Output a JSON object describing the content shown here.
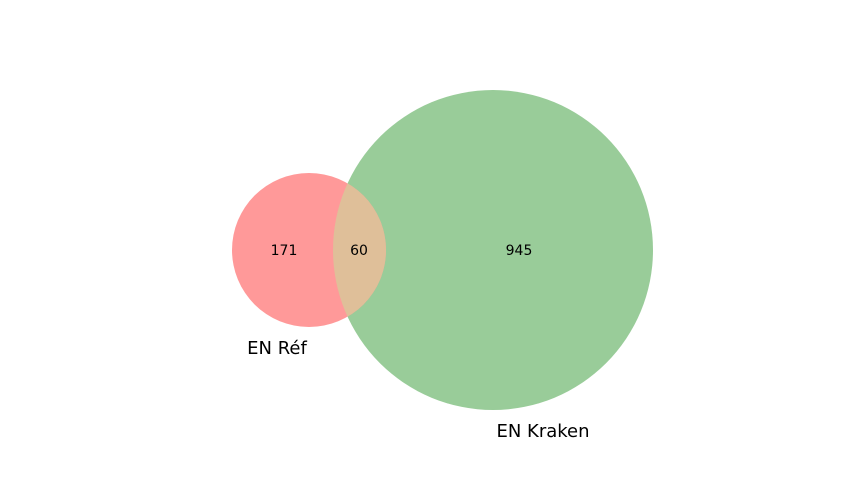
{
  "venn": {
    "sets": [
      {
        "name": "EN Réf",
        "color": "#ff9999"
      },
      {
        "name": "EN Kraken",
        "color": "#99cc99"
      }
    ],
    "intersection_color": "#dfbf99",
    "regions": {
      "only_ref": "171",
      "both": "60",
      "only_kraken": "945"
    }
  }
}
